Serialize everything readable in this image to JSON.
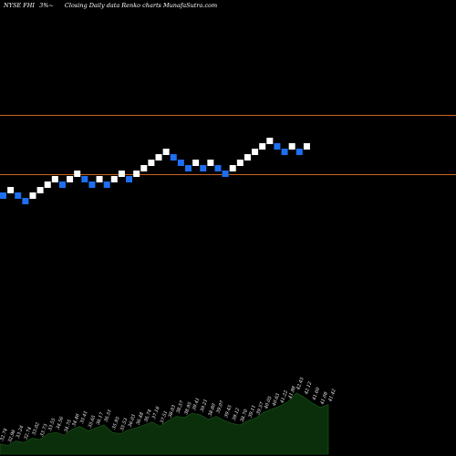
{
  "header": {
    "exchange_symbol": "NYSE FHI",
    "change": "3%",
    "change_glyph": "~",
    "caption": "Closing Daily data  Renko  charts MunafaSutra.com"
  },
  "colors": {
    "background": "#000000",
    "up_brick": "#ffffff",
    "down_brick": "#1e6ef0",
    "level_line": "#c8641e",
    "volume_fill": "#0b2f0b",
    "volume_edge": "#1c5c1c"
  },
  "chart_data": {
    "type": "renko",
    "bricks": [
      "down",
      "up",
      "down",
      "down",
      "up",
      "up",
      "up",
      "up",
      "down",
      "up",
      "up",
      "down",
      "down",
      "up",
      "down",
      "up",
      "up",
      "down",
      "up",
      "up",
      "up",
      "up",
      "up",
      "down",
      "down",
      "down",
      "up",
      "down",
      "up",
      "down",
      "down",
      "up",
      "up",
      "up",
      "up",
      "up",
      "up",
      "down",
      "down",
      "up",
      "down",
      "up"
    ],
    "levels": [
      "upper",
      "lower"
    ],
    "volume_panel": {
      "profile": [
        0.14,
        0.12,
        0.18,
        0.16,
        0.22,
        0.2,
        0.28,
        0.3,
        0.26,
        0.34,
        0.38,
        0.32,
        0.36,
        0.4,
        0.3,
        0.28,
        0.33,
        0.36,
        0.4,
        0.44,
        0.38,
        0.46,
        0.52,
        0.5,
        0.56,
        0.54,
        0.48,
        0.52,
        0.46,
        0.42,
        0.4,
        0.46,
        0.5,
        0.58,
        0.62,
        0.66,
        0.72,
        0.84,
        0.78,
        0.7,
        0.64,
        0.68
      ],
      "labels": [
        "32.74",
        "32.98",
        "33.24",
        "32.74",
        "33.02",
        "33.73",
        "33.55",
        "34.56",
        "34.75",
        "34.46",
        "35.41",
        "35.65",
        "36.17",
        "36.51",
        "35.95",
        "35.53",
        "36.03",
        "36.48",
        "36.74",
        "37.18",
        "37.51",
        "38.03",
        "38.57",
        "38.95",
        "39.41",
        "39.21",
        "38.80",
        "39.07",
        "39.45",
        "39.12",
        "38.70",
        "39.11",
        "39.57",
        "40.05",
        "40.63",
        "41.22",
        "41.88",
        "42.45",
        "42.12",
        "41.60",
        "41.08",
        "41.42"
      ]
    }
  }
}
